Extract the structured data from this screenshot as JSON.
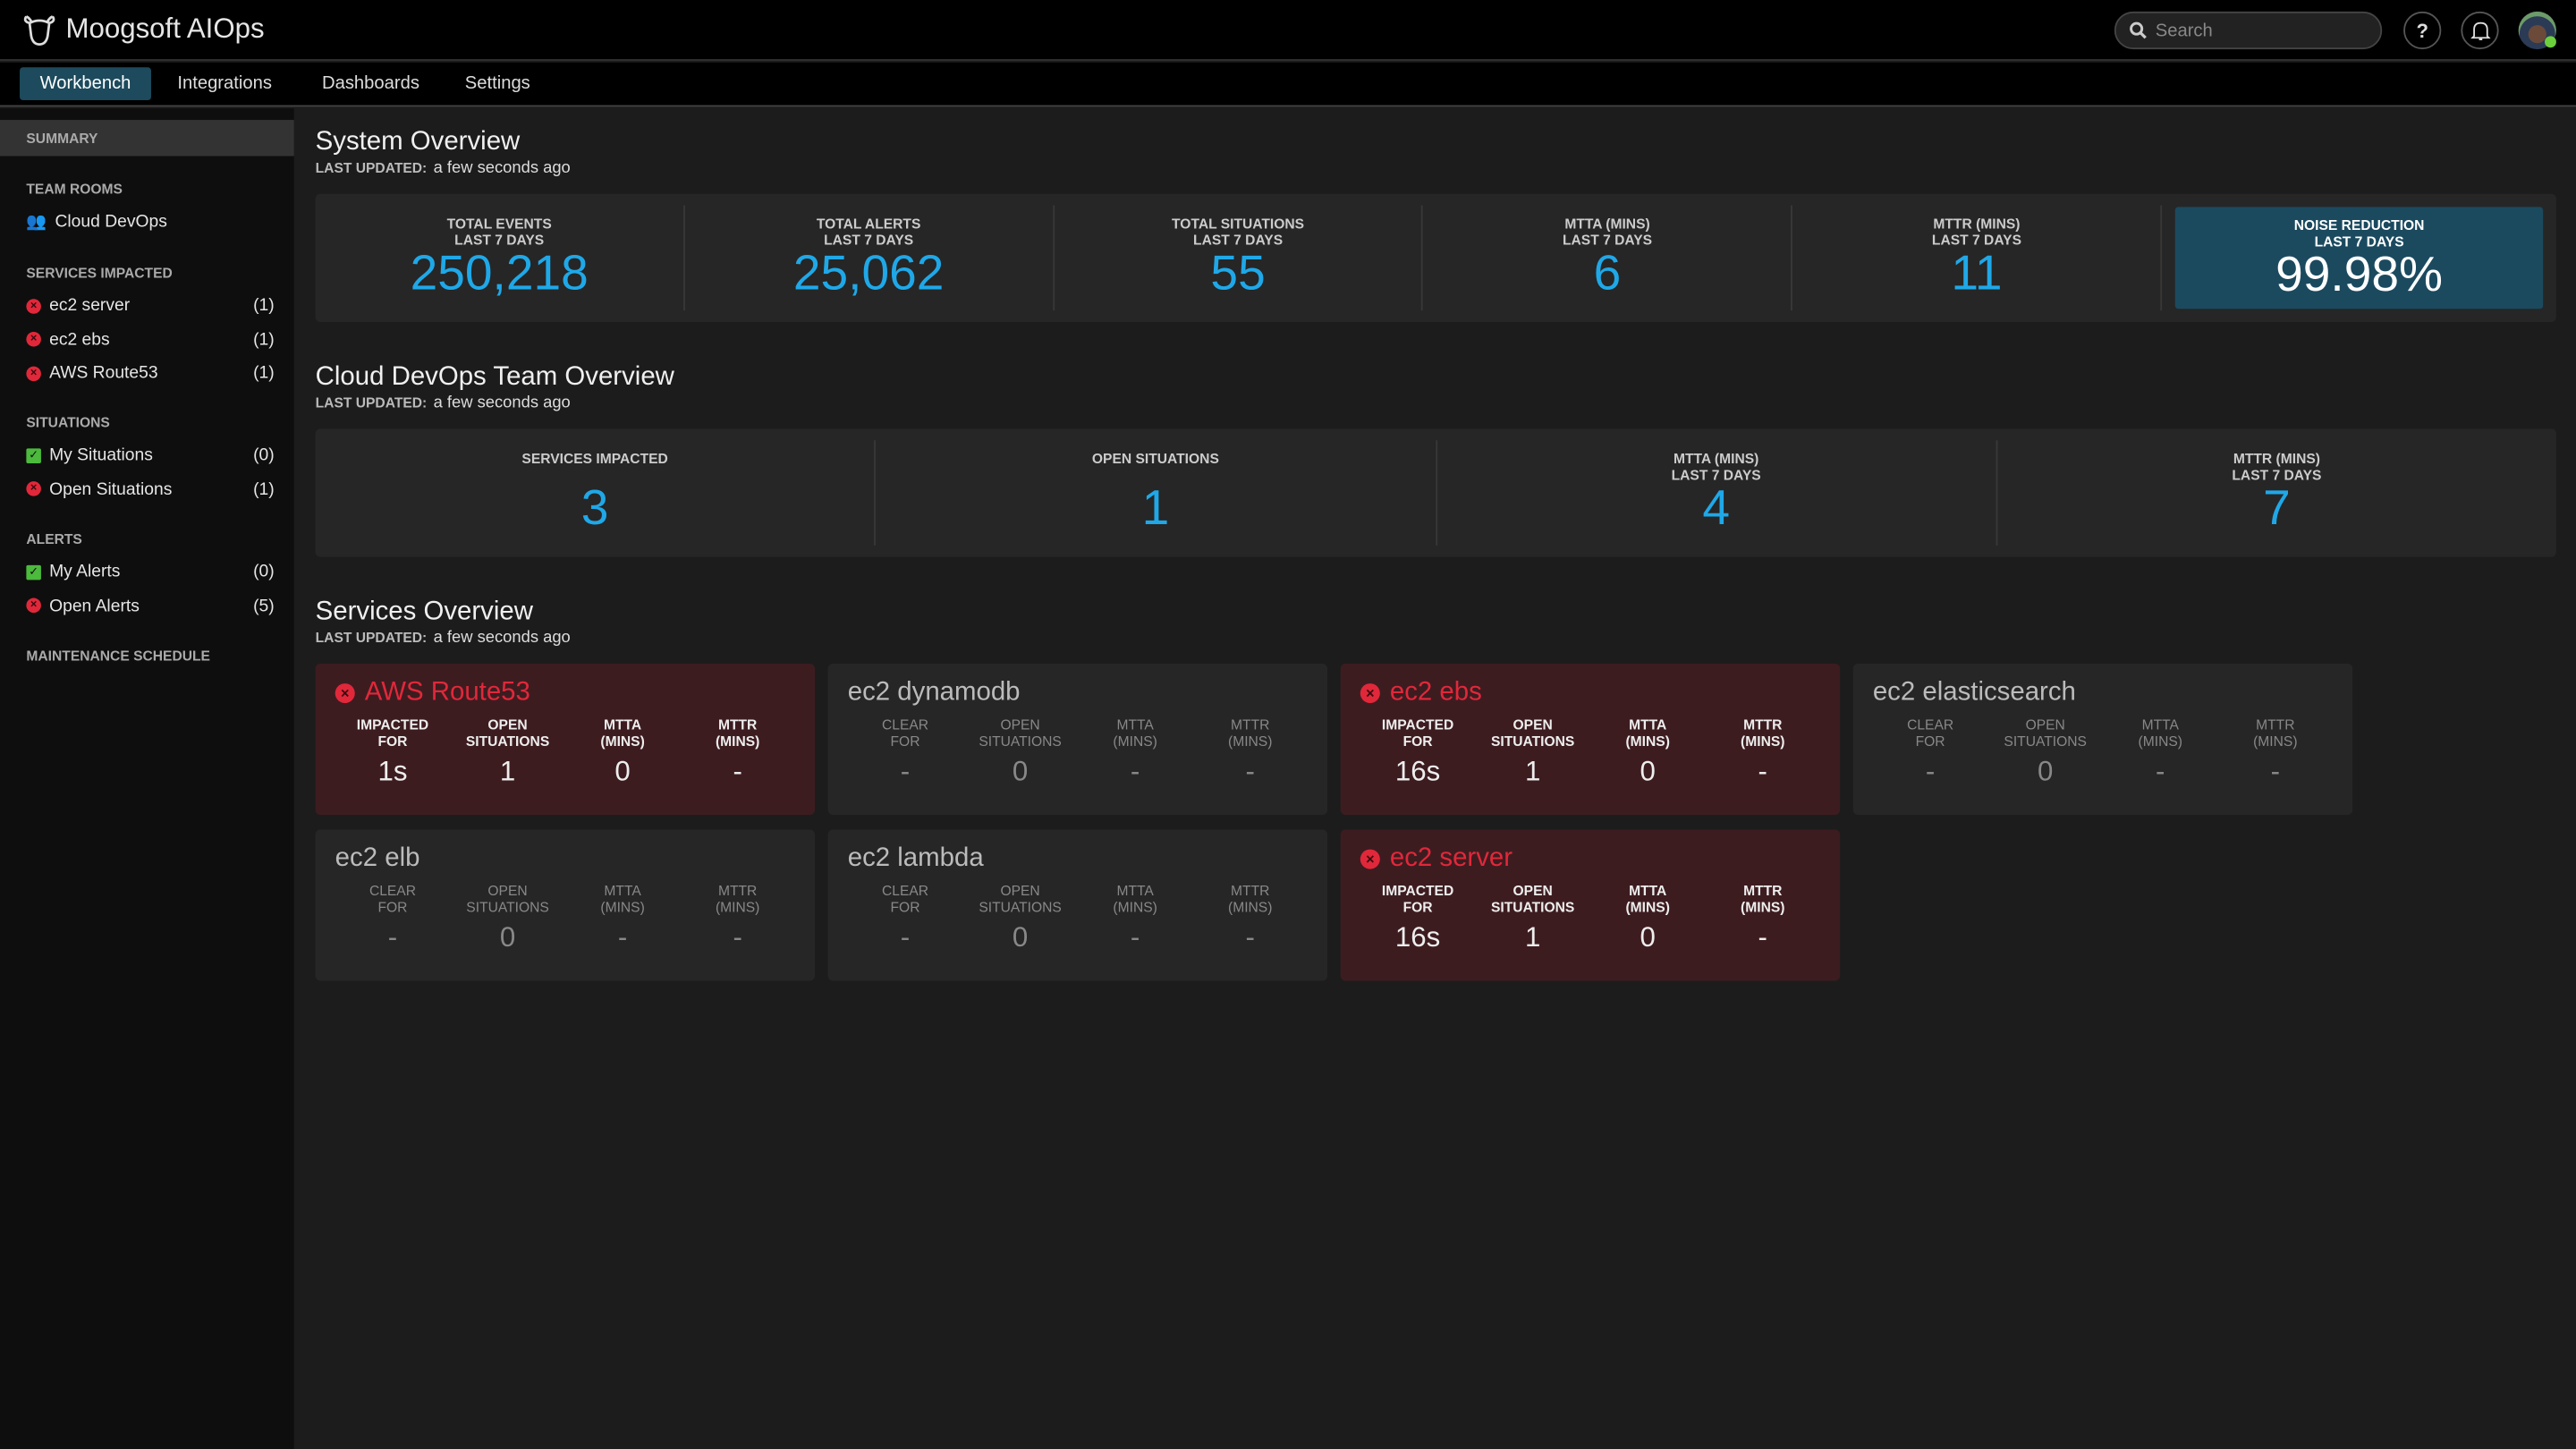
{
  "app": {
    "title": "Moogsoft AIOps",
    "logo_icon": "cow-head-icon"
  },
  "header": {
    "search_placeholder": "Search",
    "help_label": "?",
    "colors": {
      "accent": "#1fa8e8",
      "active_tab": "#1d4a5c",
      "critical": "#e0283a",
      "ok": "#4cba3c"
    }
  },
  "nav": {
    "tabs": [
      {
        "label": "Workbench",
        "active": true
      },
      {
        "label": "Integrations"
      },
      {
        "label": "Dashboards"
      },
      {
        "label": "Settings"
      }
    ]
  },
  "sidebar": {
    "summary": "SUMMARY",
    "team_rooms": {
      "heading": "TEAM ROOMS",
      "items": [
        {
          "label": "Cloud DevOps",
          "icon": "users-icon"
        }
      ]
    },
    "services_impacted": {
      "heading": "SERVICES IMPACTED",
      "items": [
        {
          "label": "ec2 server",
          "count": "(1)",
          "status": "critical"
        },
        {
          "label": "ec2 ebs",
          "count": "(1)",
          "status": "critical"
        },
        {
          "label": "AWS Route53",
          "count": "(1)",
          "status": "critical"
        }
      ]
    },
    "situations": {
      "heading": "SITUATIONS",
      "items": [
        {
          "label": "My Situations",
          "count": "(0)",
          "status": "ok"
        },
        {
          "label": "Open Situations",
          "count": "(1)",
          "status": "critical"
        }
      ]
    },
    "alerts": {
      "heading": "ALERTS",
      "items": [
        {
          "label": "My Alerts",
          "count": "(0)",
          "status": "ok"
        },
        {
          "label": "Open Alerts",
          "count": "(5)",
          "status": "critical"
        }
      ]
    },
    "maintenance": "MAINTENANCE SCHEDULE"
  },
  "system_overview": {
    "title": "System Overview",
    "updated_label": "LAST UPDATED:",
    "updated_value": "a few seconds ago",
    "stats": [
      {
        "label1": "TOTAL EVENTS",
        "label2": "LAST 7 DAYS",
        "value": "250,218"
      },
      {
        "label1": "TOTAL ALERTS",
        "label2": "LAST 7 DAYS",
        "value": "25,062"
      },
      {
        "label1": "TOTAL SITUATIONS",
        "label2": "LAST 7 DAYS",
        "value": "55"
      },
      {
        "label1": "MTTA (MINS)",
        "label2": "LAST 7 DAYS",
        "value": "6"
      },
      {
        "label1": "MTTR (MINS)",
        "label2": "LAST 7 DAYS",
        "value": "11"
      },
      {
        "label1": "NOISE REDUCTION",
        "label2": "LAST 7 DAYS",
        "value": "99.98%"
      }
    ]
  },
  "team_overview": {
    "title": "Cloud DevOps Team Overview",
    "updated_label": "LAST UPDATED:",
    "updated_value": "a few seconds ago",
    "stats": [
      {
        "label1": "SERVICES IMPACTED",
        "label2": "",
        "value": "3"
      },
      {
        "label1": "OPEN SITUATIONS",
        "label2": "",
        "value": "1"
      },
      {
        "label1": "MTTA (MINS)",
        "label2": "LAST 7 DAYS",
        "value": "4"
      },
      {
        "label1": "MTTR (MINS)",
        "label2": "LAST 7 DAYS",
        "value": "7"
      }
    ]
  },
  "services_overview": {
    "title": "Services Overview",
    "updated_label": "LAST UPDATED:",
    "updated_value": "a few seconds ago",
    "cards": [
      {
        "name": "AWS Route53",
        "status": "critical",
        "metrics": [
          {
            "l1": "IMPACTED",
            "l2": "FOR",
            "v": "1s"
          },
          {
            "l1": "OPEN",
            "l2": "SITUATIONS",
            "v": "1"
          },
          {
            "l1": "MTTA",
            "l2": "(MINS)",
            "v": "0"
          },
          {
            "l1": "MTTR",
            "l2": "(MINS)",
            "v": "-"
          }
        ]
      },
      {
        "name": "ec2 dynamodb",
        "status": "clear",
        "metrics": [
          {
            "l1": "CLEAR",
            "l2": "FOR",
            "v": "-"
          },
          {
            "l1": "OPEN",
            "l2": "SITUATIONS",
            "v": "0"
          },
          {
            "l1": "MTTA",
            "l2": "(MINS)",
            "v": "-"
          },
          {
            "l1": "MTTR",
            "l2": "(MINS)",
            "v": "-"
          }
        ]
      },
      {
        "name": "ec2 ebs",
        "status": "critical",
        "metrics": [
          {
            "l1": "IMPACTED",
            "l2": "FOR",
            "v": "16s"
          },
          {
            "l1": "OPEN",
            "l2": "SITUATIONS",
            "v": "1"
          },
          {
            "l1": "MTTA",
            "l2": "(MINS)",
            "v": "0"
          },
          {
            "l1": "MTTR",
            "l2": "(MINS)",
            "v": "-"
          }
        ]
      },
      {
        "name": "ec2 elasticsearch",
        "status": "clear",
        "metrics": [
          {
            "l1": "CLEAR",
            "l2": "FOR",
            "v": "-"
          },
          {
            "l1": "OPEN",
            "l2": "SITUATIONS",
            "v": "0"
          },
          {
            "l1": "MTTA",
            "l2": "(MINS)",
            "v": "-"
          },
          {
            "l1": "MTTR",
            "l2": "(MINS)",
            "v": "-"
          }
        ]
      },
      {
        "name": "ec2 elb",
        "status": "clear",
        "metrics": [
          {
            "l1": "CLEAR",
            "l2": "FOR",
            "v": "-"
          },
          {
            "l1": "OPEN",
            "l2": "SITUATIONS",
            "v": "0"
          },
          {
            "l1": "MTTA",
            "l2": "(MINS)",
            "v": "-"
          },
          {
            "l1": "MTTR",
            "l2": "(MINS)",
            "v": "-"
          }
        ]
      },
      {
        "name": "ec2 lambda",
        "status": "clear",
        "metrics": [
          {
            "l1": "CLEAR",
            "l2": "FOR",
            "v": "-"
          },
          {
            "l1": "OPEN",
            "l2": "SITUATIONS",
            "v": "0"
          },
          {
            "l1": "MTTA",
            "l2": "(MINS)",
            "v": "-"
          },
          {
            "l1": "MTTR",
            "l2": "(MINS)",
            "v": "-"
          }
        ]
      },
      {
        "name": "ec2 server",
        "status": "critical",
        "metrics": [
          {
            "l1": "IMPACTED",
            "l2": "FOR",
            "v": "16s"
          },
          {
            "l1": "OPEN",
            "l2": "SITUATIONS",
            "v": "1"
          },
          {
            "l1": "MTTA",
            "l2": "(MINS)",
            "v": "0"
          },
          {
            "l1": "MTTR",
            "l2": "(MINS)",
            "v": "-"
          }
        ]
      }
    ]
  }
}
